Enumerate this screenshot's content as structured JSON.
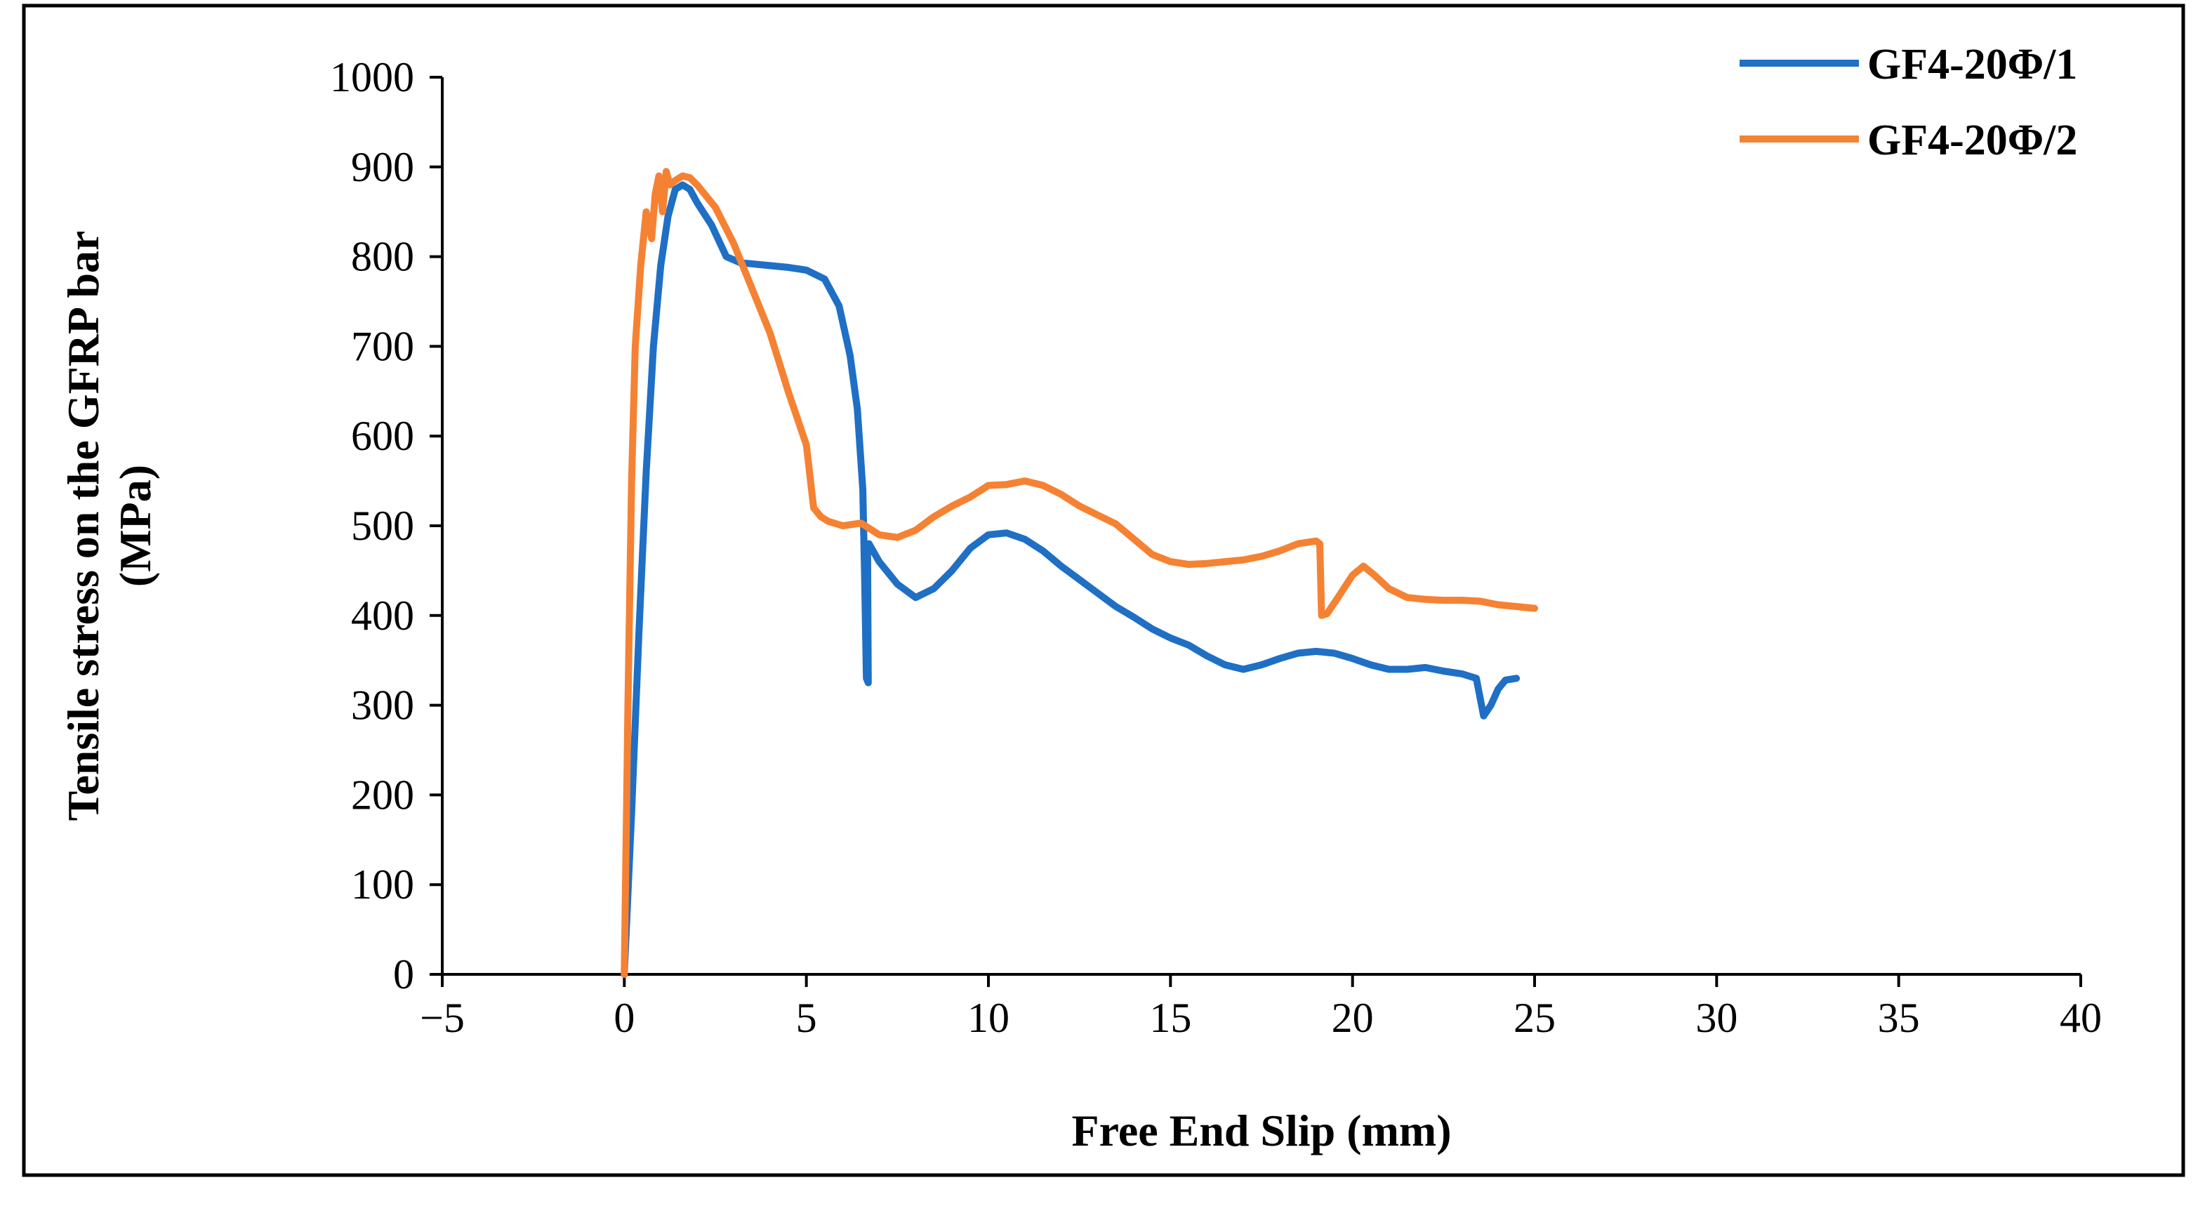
{
  "chart_data": {
    "type": "line",
    "title": "",
    "xlabel": "Free End Slip (mm)",
    "ylabel": [
      "Tensile stress on the GFRP bar",
      "(MPa)"
    ],
    "xlim": [
      -5,
      40
    ],
    "ylim": [
      0,
      1000
    ],
    "xticks": [
      -5,
      0,
      5,
      10,
      15,
      20,
      25,
      30,
      35,
      40
    ],
    "xtick_labels": [
      "−5",
      "0",
      "5",
      "10",
      "15",
      "20",
      "25",
      "30",
      "35",
      "40"
    ],
    "yticks": [
      0,
      100,
      200,
      300,
      400,
      500,
      600,
      700,
      800,
      900,
      1000
    ],
    "ytick_labels": [
      "0",
      "100",
      "200",
      "300",
      "400",
      "500",
      "600",
      "700",
      "800",
      "900",
      "1000"
    ],
    "grid": false,
    "legend_position": "top-right",
    "series": [
      {
        "name": "GF4-20Φ/1",
        "color": "#1f6fc5",
        "x": [
          0,
          0.2,
          0.4,
          0.6,
          0.8,
          1.0,
          1.2,
          1.4,
          1.6,
          1.8,
          2.0,
          2.4,
          2.8,
          3.2,
          3.5,
          4.0,
          4.5,
          5.0,
          5.5,
          5.9,
          6.2,
          6.4,
          6.55,
          6.6,
          6.65,
          6.7,
          6.68,
          6.72,
          7.0,
          7.5,
          8.0,
          8.5,
          9.0,
          9.5,
          10.0,
          10.5,
          11.0,
          11.5,
          12.0,
          12.5,
          13.0,
          13.5,
          14.0,
          14.5,
          15.0,
          15.5,
          16.0,
          16.5,
          17.0,
          17.5,
          18.0,
          18.5,
          19.0,
          19.5,
          20.0,
          20.5,
          21.0,
          21.5,
          22.0,
          22.5,
          23.0,
          23.4,
          23.6,
          23.8,
          24.0,
          24.2,
          24.5
        ],
        "y": [
          0,
          180,
          380,
          560,
          700,
          790,
          845,
          875,
          880,
          875,
          860,
          835,
          800,
          793,
          792,
          790,
          788,
          785,
          775,
          745,
          690,
          630,
          540,
          440,
          330,
          325,
          480,
          480,
          460,
          435,
          420,
          430,
          450,
          475,
          490,
          492,
          485,
          472,
          455,
          440,
          425,
          410,
          398,
          385,
          375,
          367,
          355,
          345,
          340,
          345,
          352,
          358,
          360,
          358,
          352,
          345,
          340,
          340,
          342,
          338,
          335,
          330,
          288,
          300,
          318,
          328,
          330
        ]
      },
      {
        "name": "GF4-20Φ/2",
        "color": "#f58233",
        "x": [
          0,
          0.1,
          0.2,
          0.3,
          0.45,
          0.6,
          0.75,
          0.85,
          0.95,
          1.05,
          1.15,
          1.25,
          1.4,
          1.6,
          1.8,
          2.0,
          2.5,
          3.0,
          3.5,
          4.0,
          4.5,
          5.0,
          5.2,
          5.4,
          5.6,
          6.0,
          6.5,
          7.0,
          7.5,
          8.0,
          8.5,
          9.0,
          9.5,
          10.0,
          10.5,
          11.0,
          11.5,
          12.0,
          12.5,
          13.0,
          13.5,
          14.0,
          14.5,
          15.0,
          15.5,
          16.0,
          16.5,
          17.0,
          17.5,
          18.0,
          18.5,
          19.0,
          19.1,
          19.15,
          19.3,
          19.6,
          20.0,
          20.3,
          20.6,
          21.0,
          21.5,
          22.0,
          22.5,
          23.0,
          23.5,
          24.0,
          24.5,
          25.0
        ],
        "y": [
          0,
          300,
          550,
          700,
          790,
          850,
          820,
          870,
          890,
          850,
          895,
          880,
          885,
          890,
          888,
          880,
          855,
          815,
          765,
          715,
          650,
          590,
          520,
          510,
          505,
          500,
          503,
          490,
          487,
          495,
          510,
          522,
          532,
          545,
          546,
          550,
          545,
          535,
          522,
          512,
          502,
          485,
          468,
          460,
          457,
          458,
          460,
          462,
          466,
          472,
          480,
          483,
          480,
          400,
          402,
          420,
          445,
          455,
          445,
          430,
          420,
          418,
          417,
          417,
          416,
          412,
          410,
          408
        ]
      }
    ]
  }
}
